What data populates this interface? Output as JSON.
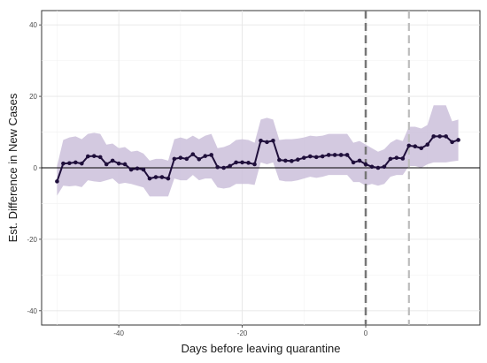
{
  "chart_data": {
    "type": "line",
    "title": "",
    "xlabel": "Days before leaving quarantine",
    "ylabel": "Est. Difference in New Cases",
    "xlim": [
      -52.5,
      18.5
    ],
    "ylim": [
      -44,
      44
    ],
    "x_ticks": [
      -40,
      -20,
      0
    ],
    "y_ticks": [
      -40,
      -20,
      0,
      20,
      40
    ],
    "grid": true,
    "legend": "none",
    "colors": {
      "line": "#1f0f3b",
      "band": "#cbbfda",
      "zero_line": "#000000",
      "vline_primary": "#777777",
      "vline_secondary": "#bdbdbd"
    },
    "hline_y": 0,
    "vlines": [
      {
        "x": 0,
        "style": "dashed-dark"
      },
      {
        "x": 7,
        "style": "dashed-light"
      }
    ],
    "series": [
      {
        "x": [
          -50,
          -49,
          -48,
          -47,
          -46,
          -45,
          -44,
          -43,
          -42,
          -41,
          -40,
          -39,
          -38,
          -37,
          -36,
          -35,
          -34,
          -33,
          -32,
          -31,
          -30,
          -29,
          -28,
          -27,
          -26,
          -25,
          -24,
          -23,
          -22,
          -21,
          -20,
          -19,
          -18,
          -17,
          -16,
          -15,
          -14,
          -13,
          -12,
          -11,
          -10,
          -9,
          -8,
          -7,
          -6,
          -5,
          -4,
          -3,
          -2,
          -1,
          0,
          1,
          2,
          3,
          4,
          5,
          6,
          7,
          8,
          9,
          10,
          11,
          12,
          13,
          14,
          15
        ],
        "y": [
          -3.8,
          1.2,
          1.3,
          1.5,
          1.2,
          3.2,
          3.3,
          3.0,
          1.0,
          2.0,
          1.2,
          1.0,
          -0.5,
          -0.2,
          -0.5,
          -3.0,
          -2.6,
          -2.6,
          -3.0,
          2.5,
          2.8,
          2.5,
          3.8,
          2.4,
          3.3,
          3.6,
          0.2,
          0.0,
          0.5,
          1.5,
          1.5,
          1.4,
          1.0,
          7.6,
          7.2,
          7.6,
          2.2,
          2.0,
          1.9,
          2.3,
          2.8,
          3.2,
          3.0,
          3.2,
          3.6,
          3.6,
          3.6,
          3.6,
          1.5,
          2.0,
          1.0,
          0.3,
          0.0,
          0.3,
          2.5,
          2.8,
          2.6,
          6.2,
          6.0,
          5.5,
          6.5,
          8.8,
          8.8,
          8.8,
          7.2,
          7.8
        ],
        "lower": [
          -7.8,
          -5.0,
          -5.2,
          -5.0,
          -5.4,
          -3.5,
          -3.8,
          -4.0,
          -3.5,
          -3.0,
          -4.5,
          -4.2,
          -4.5,
          -5.0,
          -5.5,
          -8.0,
          -8.0,
          -8.0,
          -8.0,
          -3.0,
          -3.5,
          -3.5,
          -2.0,
          -3.5,
          -3.0,
          -3.0,
          -5.5,
          -5.8,
          -5.5,
          -4.5,
          -4.5,
          -4.5,
          -4.8,
          1.5,
          1.0,
          1.5,
          -3.5,
          -3.8,
          -3.8,
          -3.5,
          -3.0,
          -2.5,
          -2.8,
          -2.5,
          -2.0,
          -2.0,
          -2.0,
          -2.0,
          -4.0,
          -4.0,
          -5.0,
          -4.5,
          -5.0,
          -4.5,
          -2.5,
          -2.0,
          -2.0,
          0.5,
          0.5,
          0.0,
          1.0,
          1.5,
          1.5,
          1.5,
          1.8,
          2.0
        ],
        "upper": [
          0.5,
          7.8,
          8.5,
          8.8,
          8.0,
          9.5,
          9.8,
          9.5,
          6.5,
          6.8,
          5.5,
          5.8,
          4.5,
          4.8,
          4.0,
          2.0,
          2.5,
          2.5,
          2.0,
          8.0,
          8.5,
          8.0,
          9.0,
          8.0,
          9.0,
          9.5,
          5.5,
          5.8,
          6.5,
          7.8,
          8.0,
          7.8,
          7.0,
          13.5,
          14.0,
          13.5,
          7.8,
          8.0,
          8.0,
          8.2,
          8.5,
          9.0,
          8.8,
          9.0,
          9.5,
          9.5,
          9.5,
          9.5,
          7.0,
          7.5,
          6.5,
          5.5,
          4.5,
          5.2,
          7.0,
          8.0,
          7.5,
          11.5,
          11.5,
          11.0,
          12.0,
          17.5,
          17.5,
          17.5,
          13.0,
          13.5
        ]
      }
    ]
  }
}
